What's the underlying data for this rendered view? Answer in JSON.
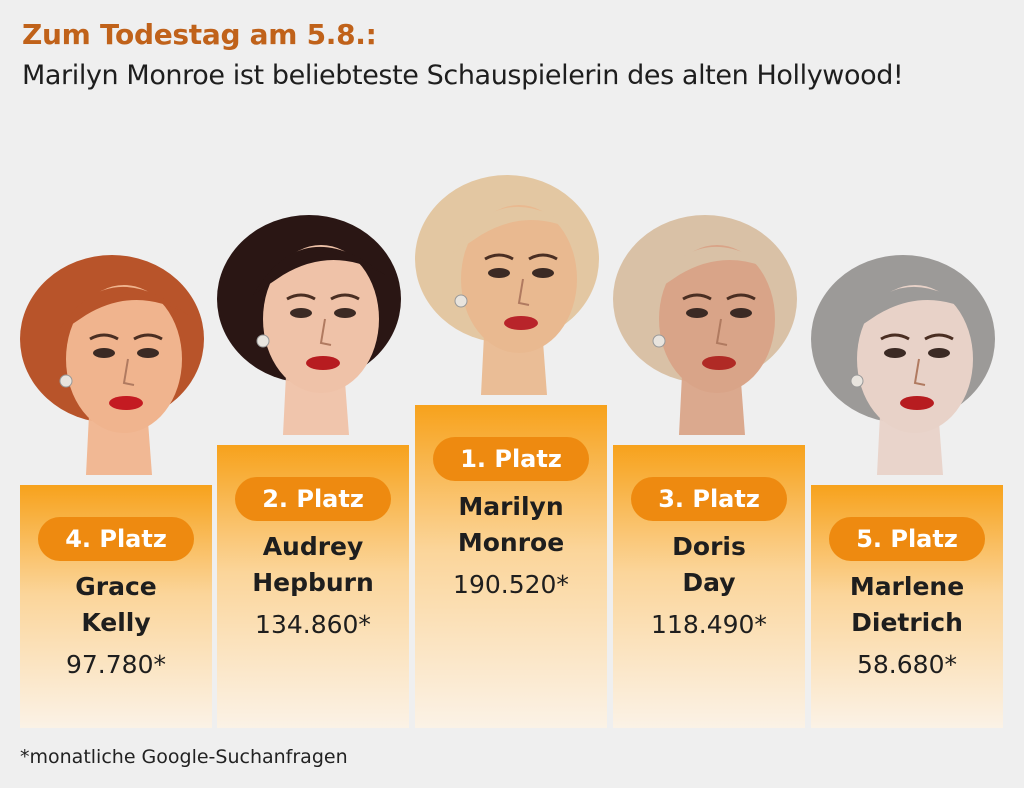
{
  "title": "Zum Todestag am 5.8.:",
  "subtitle": "Marilyn Monroe ist beliebteste Schauspielerin des alten Hollywood!",
  "footnote": "*monatliche Google-Suchanfragen",
  "colors": {
    "title": "#c0621a",
    "badge": "#ee8a10",
    "podium_top": "#f7a21c",
    "podium_bottom": "#fbf2e6",
    "background": "#efefef"
  },
  "chart_data": {
    "type": "bar",
    "categories": [
      "Grace Kelly",
      "Audrey Hepburn",
      "Marilyn Monroe",
      "Doris Day",
      "Marlene Dietrich"
    ],
    "values": [
      97780,
      134860,
      190520,
      118490,
      58680
    ],
    "value_labels": [
      "97.780*",
      "134.860*",
      "190.520*",
      "118.490*",
      "58.680*"
    ],
    "rank_labels": [
      "4. Platz",
      "2. Platz",
      "1. Platz",
      "3. Platz",
      "5. Platz"
    ],
    "name_lines": [
      [
        "Grace",
        "Kelly"
      ],
      [
        "Audrey",
        "Hepburn"
      ],
      [
        "Marilyn",
        "Monroe"
      ],
      [
        "Doris",
        "Day"
      ],
      [
        "Marlene",
        "Dietrich"
      ]
    ],
    "portraits": [
      "grace-kelly-portrait",
      "audrey-hepburn-portrait",
      "marilyn-monroe-portrait",
      "doris-day-portrait",
      "marlene-dietrich-portrait"
    ],
    "hair_colors": [
      "#b8542a",
      "#2a1614",
      "#e3c7a2",
      "#d9c1a6",
      "#9c9a98"
    ],
    "skin_colors": [
      "#f0b48e",
      "#efc2a8",
      "#e9b990",
      "#d9a488",
      "#e8d2c8"
    ],
    "lip_colors": [
      "#c41b22",
      "#b71c20",
      "#b8242a",
      "#b02a25",
      "#b71c20"
    ]
  }
}
